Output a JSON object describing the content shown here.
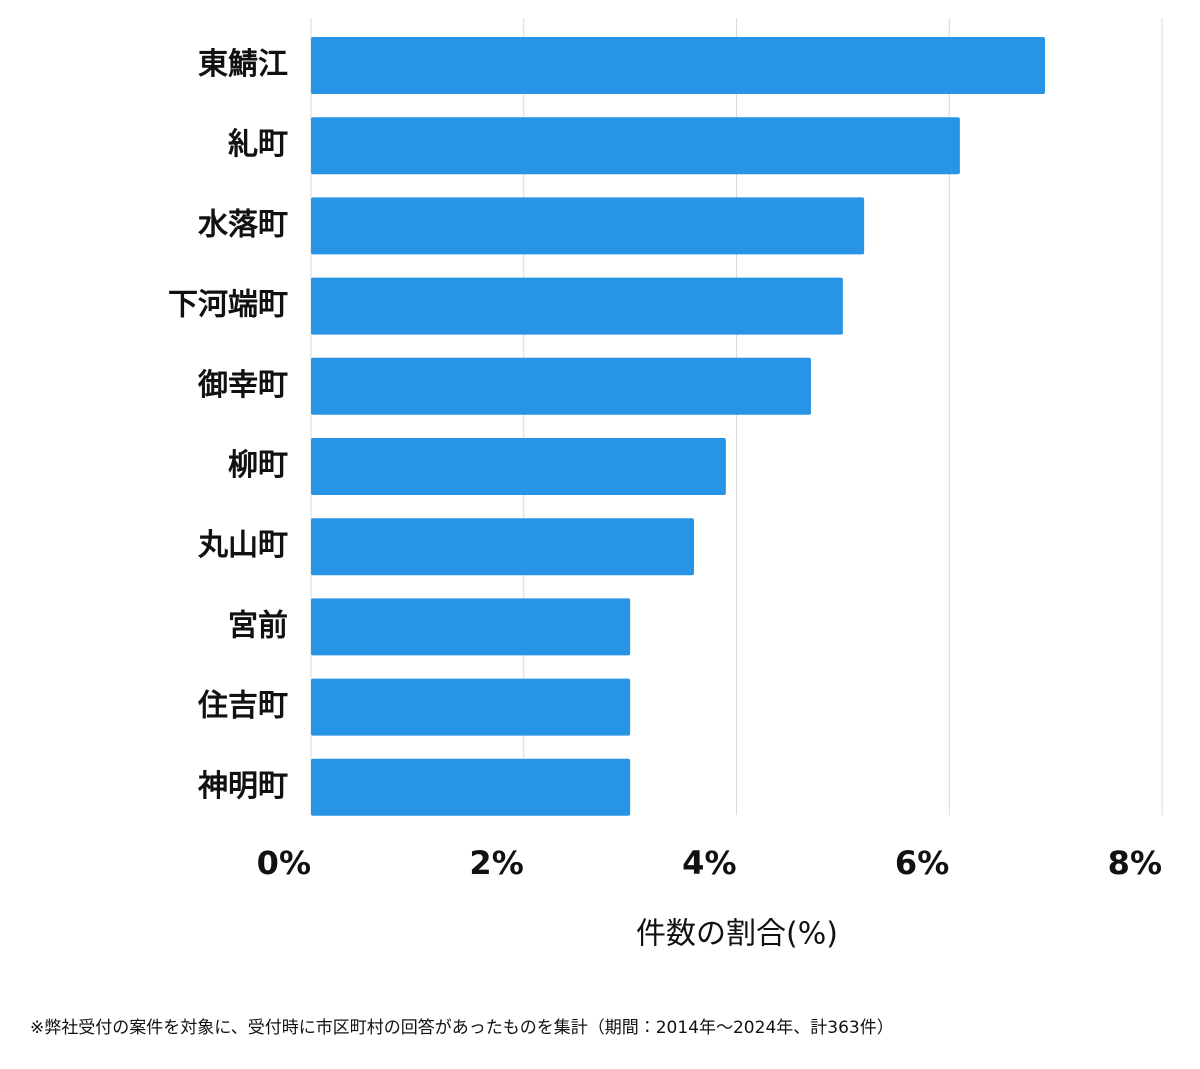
{
  "chart_data": {
    "type": "bar",
    "orientation": "horizontal",
    "categories": [
      "東鯖江",
      "糺町",
      "水落町",
      "下河端町",
      "御幸町",
      "柳町",
      "丸山町",
      "宮前",
      "住吉町",
      "神明町"
    ],
    "values": [
      6.9,
      6.1,
      5.2,
      5.0,
      4.7,
      3.9,
      3.6,
      3.0,
      3.0,
      3.0
    ],
    "color": "#2894e6",
    "xlim": [
      0,
      8
    ],
    "xticks": [
      {
        "value": 0,
        "label": "0%"
      },
      {
        "value": 2,
        "label": "2%"
      },
      {
        "value": 4,
        "label": "4%"
      },
      {
        "value": 6,
        "label": "6%"
      },
      {
        "value": 8,
        "label": "8%"
      }
    ],
    "x_label": "件数の割合(%)",
    "grid": true,
    "footnote": "※弊社受付の案件を対象に、受付時に市区町村の回答があったものを集計（期間：2014年～2024年、計363件）"
  }
}
